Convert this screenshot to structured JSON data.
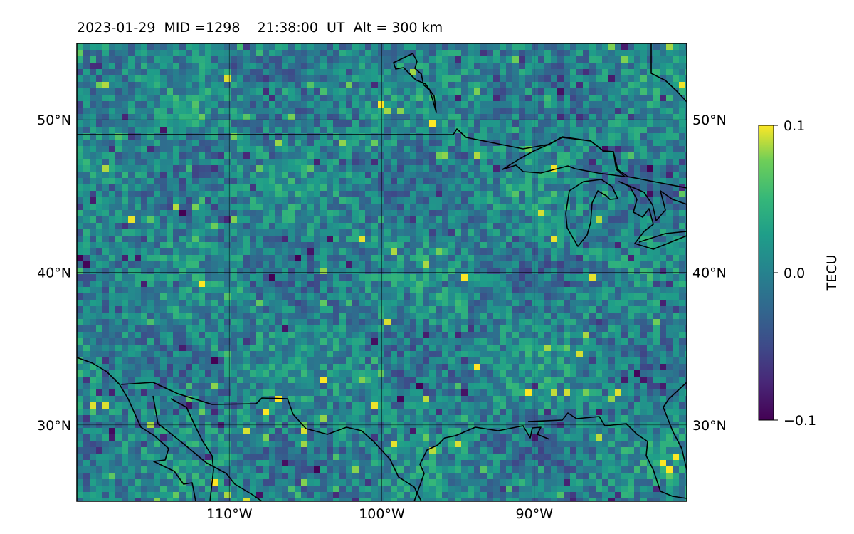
{
  "title": "2023-01-29  MID =1298    21:38:00  UT  Alt = 300 km",
  "map": {
    "lon_range": [
      -120,
      -80
    ],
    "lat_range": [
      25,
      55
    ],
    "lat_ticks": [
      {
        "value": 50,
        "label": "50°N"
      },
      {
        "value": 40,
        "label": "40°N"
      },
      {
        "value": 30,
        "label": "30°N"
      }
    ],
    "lon_ticks": [
      {
        "value": -110,
        "label": "110°W"
      },
      {
        "value": -100,
        "label": "100°W"
      },
      {
        "value": -90,
        "label": "90°W"
      }
    ],
    "colormap": "viridis",
    "grid": true
  },
  "colorbar": {
    "label": "TECU",
    "min": -0.1,
    "max": 0.1,
    "ticks": [
      {
        "value": 0.1,
        "label": "0.1"
      },
      {
        "value": 0.0,
        "label": "0.0"
      },
      {
        "value": -0.1,
        "label": "−0.1"
      }
    ]
  }
}
